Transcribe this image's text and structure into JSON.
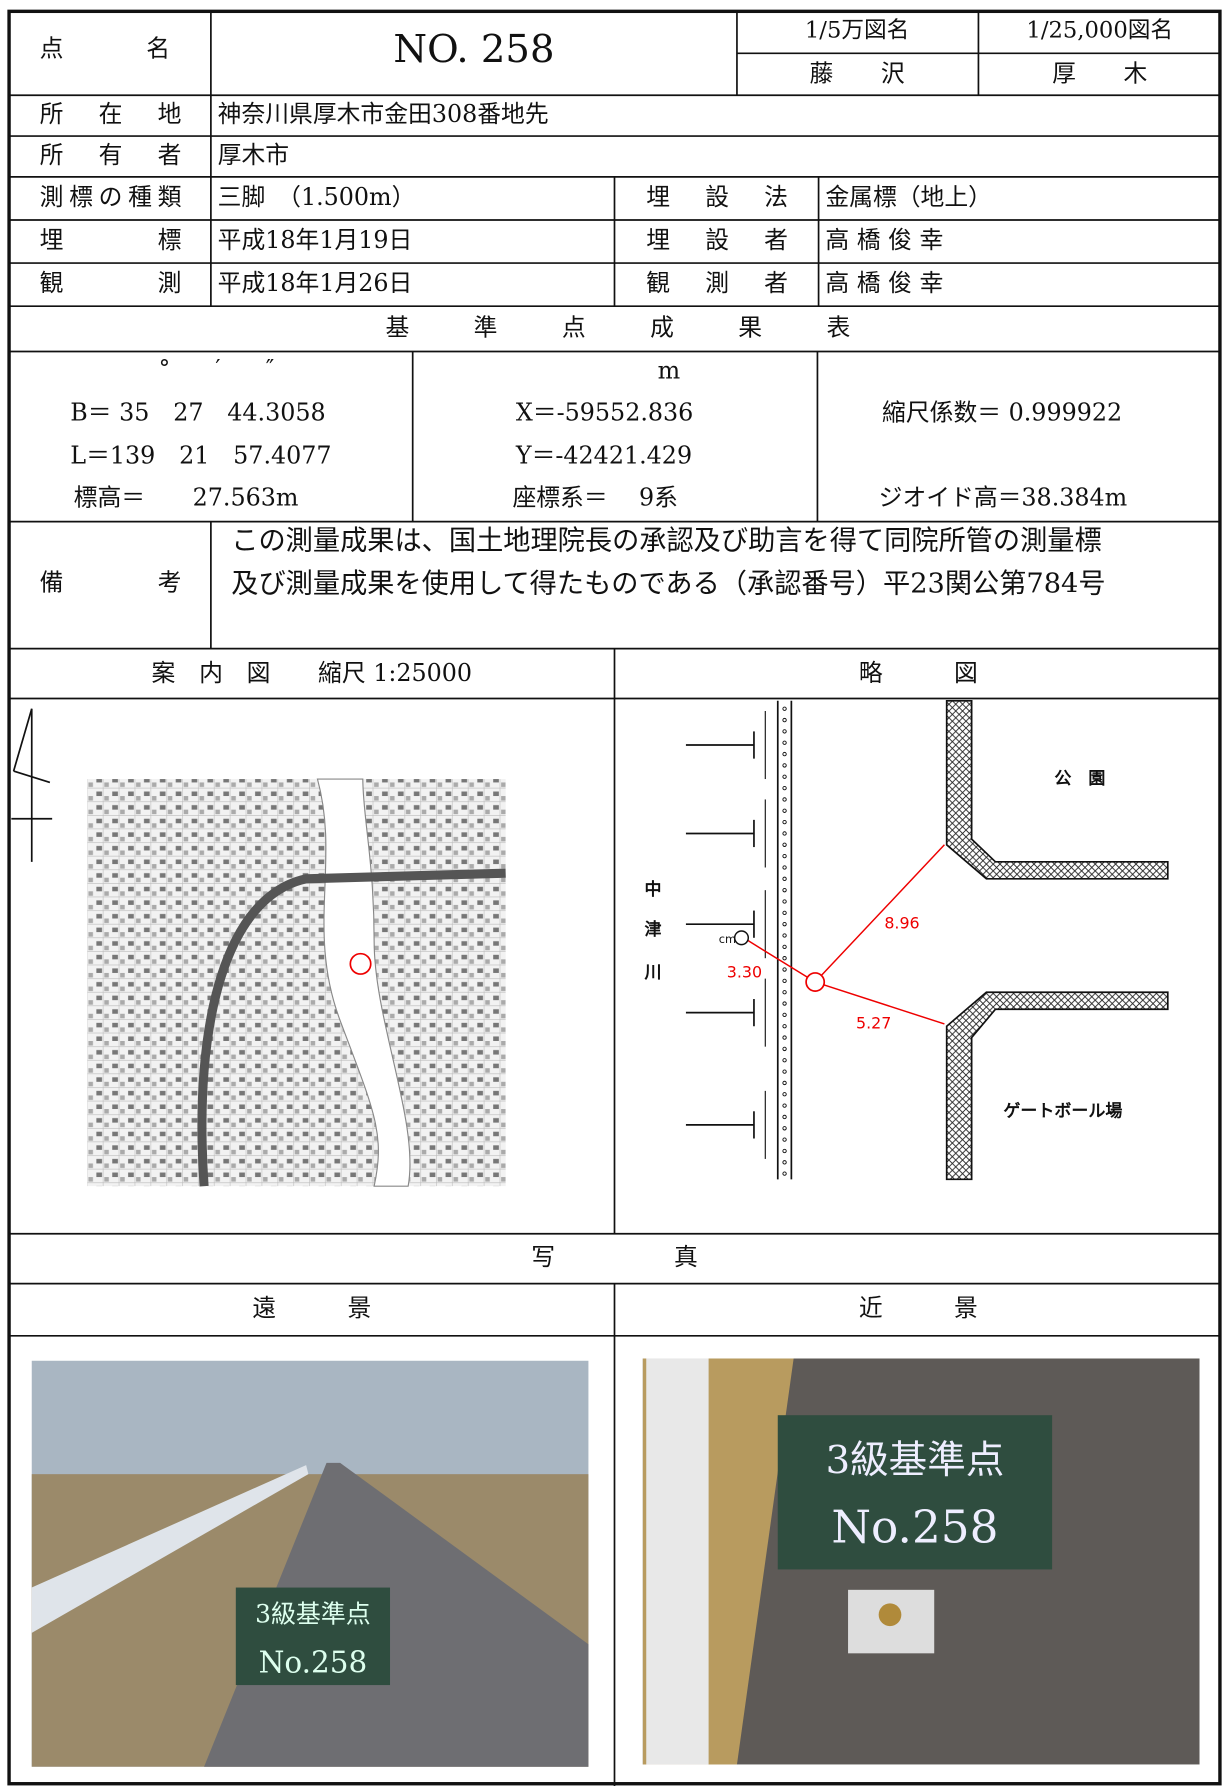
{
  "header": {
    "point_name_label": "点　名",
    "point_name": "NO. 258",
    "map_50000_label": "1/5万図名",
    "map_50000": "藤　　沢",
    "map_25000_label": "1/25,000図名",
    "map_25000": "厚　　木"
  },
  "info": {
    "location_label": "所　在　地",
    "location": "神奈川県厚木市金田308番地先",
    "owner_label": "所　有　者",
    "owner": "厚木市",
    "marker_type_label": "測標の種類",
    "marker_type": "三脚　（1.500m）",
    "burial_method_label": "埋　設　法",
    "burial_method": "金属標（地上）",
    "burial_label": "埋　　標",
    "burial_date": "平成18年1月19日",
    "burier_label": "埋　設　者",
    "burier": "高 橋 俊 幸",
    "observation_label": "観　　測",
    "observation_date": "平成18年1月26日",
    "observer_label": "観　測　者",
    "observer": "高 橋 俊 幸"
  },
  "results": {
    "title": "基　準　点　成　果　表",
    "angle_units": "°　　′　　″",
    "B": "B＝ 35　27　44.3058",
    "L": "L＝139　21　57.4077",
    "height": "標高＝　　27.563m",
    "xy_unit": "m",
    "X": "X＝-59552.836",
    "Y": "Y＝-42421.429",
    "coord_system": "座標系＝　 9系",
    "scale_factor": "縮尺係数＝ 0.999922",
    "geoid_height": "ジオイド高＝38.384m"
  },
  "remarks": {
    "label": "備　　考",
    "lines": [
      "この測量成果は、国土地理院長の承認及び助言を得て同院所管の測量標",
      "及び測量成果を使用して得たものである（承認番号）平23関公第784号"
    ]
  },
  "guide_map": {
    "title": "案　内　図　　縮尺 1:25000"
  },
  "sketch": {
    "title": "略　　　図",
    "river": [
      "中",
      "津",
      "川"
    ],
    "park": "公　園",
    "gateball": "ゲートボール場",
    "cm": "cm",
    "dist_1": "8.96",
    "dist_2": "3.30",
    "dist_3": "5.27"
  },
  "photos": {
    "title": "写　　　　　真",
    "far": "遠　　　景",
    "near": "近　　　景",
    "far_sign": [
      "3級基準点",
      "No.258"
    ],
    "near_sign": [
      "3級基準点",
      "No.258"
    ]
  }
}
